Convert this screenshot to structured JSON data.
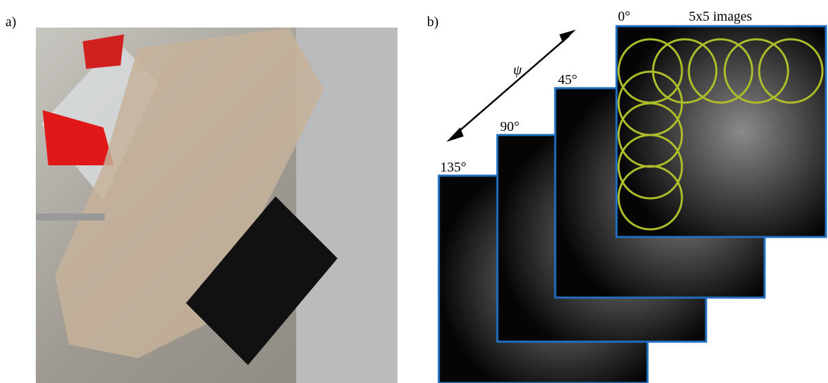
{
  "panel_a": {
    "label": "a)"
  },
  "panel_b": {
    "label": "b)",
    "symbol": "ψ",
    "caption": "5x5 images",
    "angles": [
      "0°",
      "45°",
      "90°",
      "135°"
    ]
  }
}
